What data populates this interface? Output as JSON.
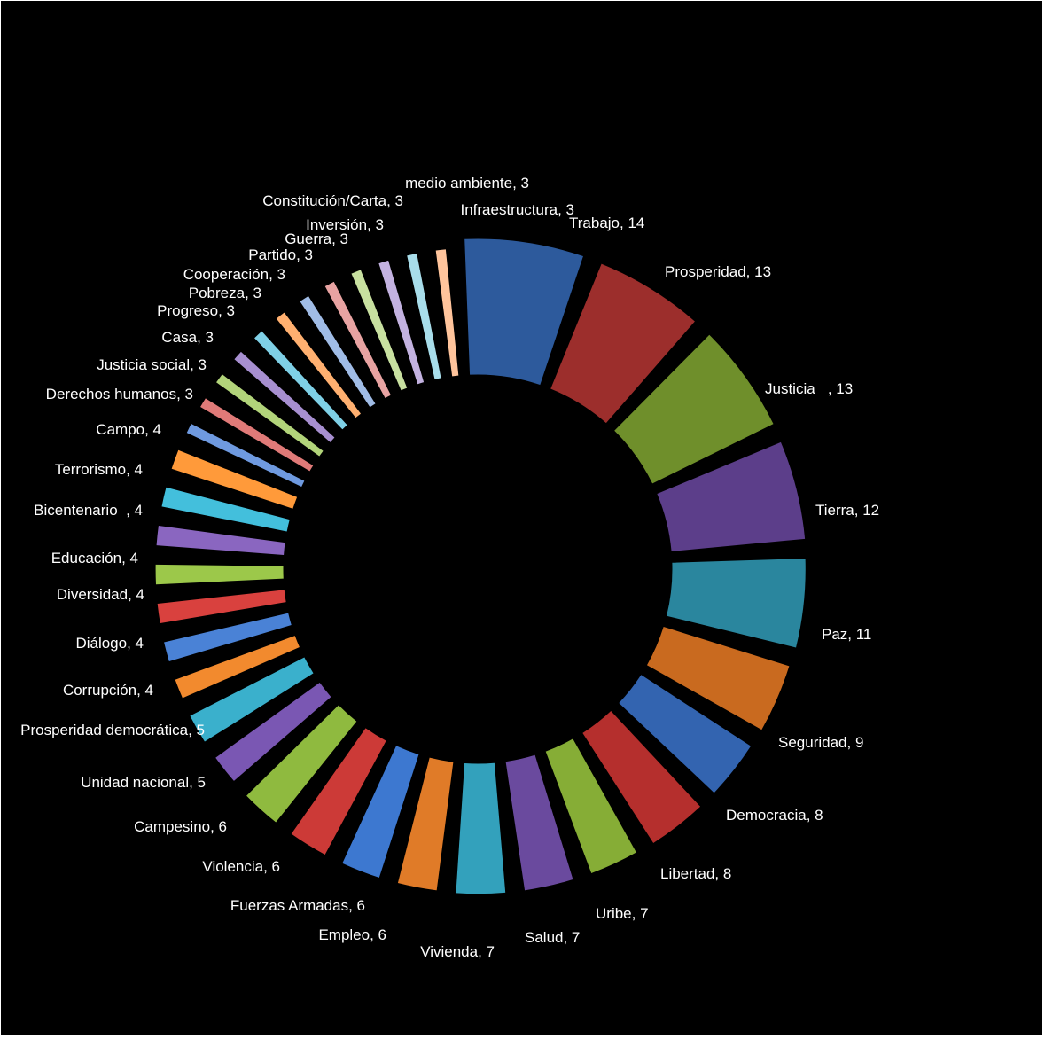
{
  "chart_data": {
    "type": "donut",
    "title": "",
    "legend": "none",
    "categories": [
      "Trabajo",
      "Prosperidad",
      "Justicia  ",
      "Tierra",
      "Paz",
      "Seguridad",
      "Democracia",
      "Libertad",
      "Uribe",
      "Salud",
      "Vivienda",
      "Empleo",
      "Fuerzas Armadas",
      "Violencia",
      "Campesino",
      "Unidad nacional",
      "Prosperidad democrática",
      "Corrupción",
      "Diálogo",
      "Diversidad",
      "Educación",
      "Bicentenario ",
      "Terrorismo",
      "Campo",
      "Derechos humanos",
      "Justicia social",
      "Casa",
      "Progreso",
      "Pobreza",
      "Cooperación",
      "Partido",
      "Guerra",
      "Inversión",
      "Constitución/Carta",
      "medio ambiente",
      "Infraestructura"
    ],
    "values": [
      14,
      13,
      13,
      12,
      11,
      9,
      8,
      8,
      7,
      7,
      7,
      6,
      6,
      6,
      6,
      5,
      5,
      4,
      4,
      4,
      4,
      4,
      4,
      4,
      3,
      3,
      3,
      3,
      3,
      3,
      3,
      3,
      3,
      3,
      3,
      3
    ],
    "labels": [
      "Trabajo, 14",
      "Prosperidad, 13",
      "Justicia   , 13",
      "Tierra, 12",
      "Paz, 11",
      "Seguridad, 9",
      "Democracia, 8",
      "Libertad, 8",
      "Uribe, 7",
      "Salud, 7",
      "Vivienda, 7",
      "Empleo, 6",
      "Fuerzas Armadas, 6",
      "Violencia, 6",
      "Campesino, 6",
      "Unidad nacional, 5",
      "Prosperidad democrática, 5",
      "Corrupción, 4",
      "Diálogo, 4",
      "Diversidad, 4",
      "Educación, 4",
      "Bicentenario  , 4",
      "Terrorismo, 4",
      "Campo, 4",
      "Derechos humanos, 3",
      "Justicia social, 3",
      "Casa, 3",
      "Progreso, 3",
      "Pobreza, 3",
      "Cooperación, 3",
      "Partido, 3",
      "Guerra, 3",
      "Inversión, 3",
      "Constitución/Carta, 3",
      "medio ambiente, 3",
      "Infraestructura, 3"
    ],
    "colors": [
      "#2d5a9c",
      "#9c2e2c",
      "#6f8f2b",
      "#5c3e8a",
      "#2a869e",
      "#c96a1f",
      "#3364b0",
      "#b52f2d",
      "#86ad36",
      "#6a4a9e",
      "#33a1bc",
      "#e07b28",
      "#3d78d0",
      "#cc3a37",
      "#8fba3f",
      "#7a57b3",
      "#3ab0cc",
      "#f28a2e",
      "#4a82d6",
      "#d9413e",
      "#9cc84a",
      "#8a66c0",
      "#43bfdc",
      "#ff9a3a",
      "#6f9ae0",
      "#e07a78",
      "#b2d47a",
      "#a78fd0",
      "#7fd0e6",
      "#ffb070",
      "#a0bce6",
      "#e8a3a2",
      "#c8e0a0",
      "#c3b2e0",
      "#a8ddea",
      "#ffc49c"
    ]
  }
}
